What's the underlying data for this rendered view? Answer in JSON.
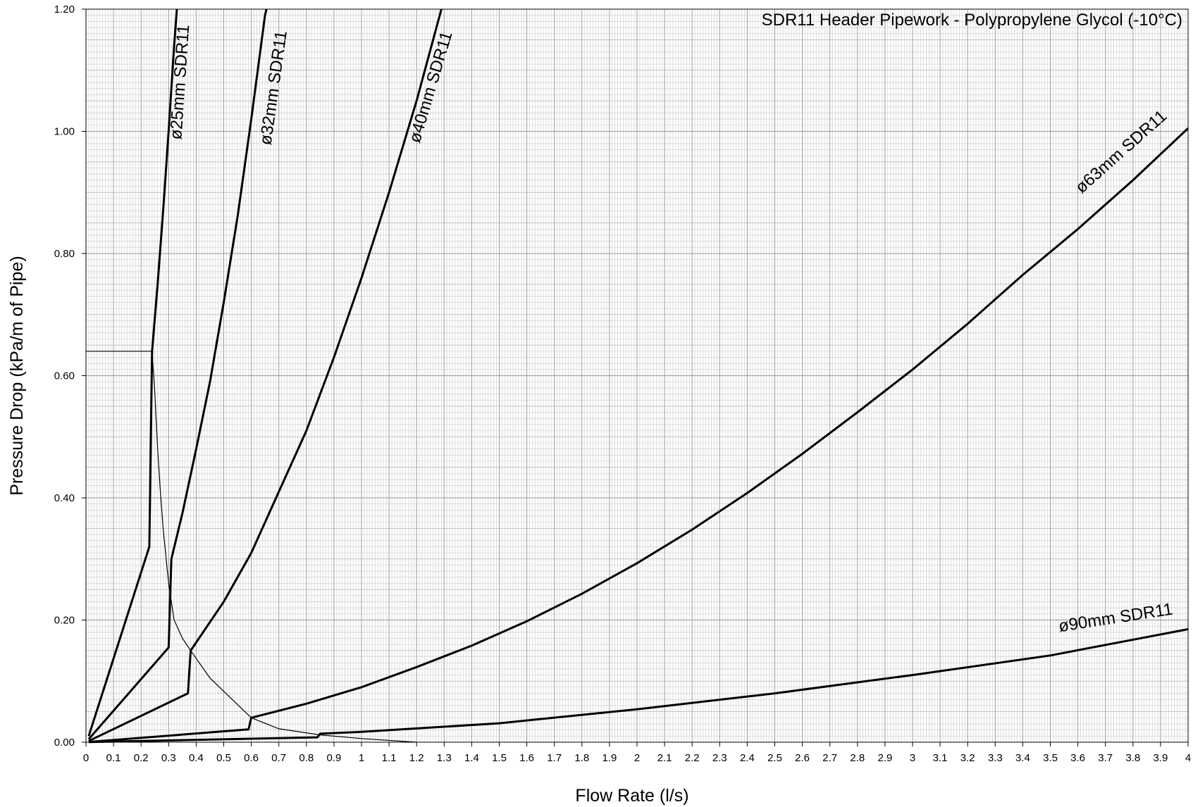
{
  "chart_data": {
    "type": "line",
    "title": "SDR11 Header Pipework - Polypropylene Glycol (-10°C)",
    "xlabel": "Flow Rate (l/s)",
    "ylabel": "Pressure Drop (kPa/m of Pipe)",
    "xlim": [
      0,
      4
    ],
    "ylim": [
      0,
      1.2
    ],
    "grid": true,
    "x_ticks": [
      "0",
      "0.1",
      "0.2",
      "0.3",
      "0.4",
      "0.5",
      "0.6",
      "0.7",
      "0.8",
      "0.9",
      "1",
      "1.1",
      "1.2",
      "1.3",
      "1.4",
      "1.5",
      "1.6",
      "1.7",
      "1.8",
      "1.9",
      "2",
      "2.1",
      "2.2",
      "2.3",
      "2.4",
      "2.5",
      "2.6",
      "2.7",
      "2.8",
      "2.9",
      "3",
      "3.1",
      "3.2",
      "3.3",
      "3.4",
      "3.5",
      "3.6",
      "3.7",
      "3.8",
      "3.9",
      "4"
    ],
    "y_ticks": [
      "0.00",
      "0.20",
      "0.40",
      "0.60",
      "0.80",
      "1.00",
      "1.20"
    ],
    "series": [
      {
        "name": "ø25mm SDR11",
        "label_at": [
          0.36,
          1.08
        ],
        "points": [
          [
            0.01,
            0.01
          ],
          [
            0.23,
            0.32
          ],
          [
            0.24,
            0.64
          ],
          [
            0.26,
            0.75
          ],
          [
            0.28,
            0.87
          ],
          [
            0.3,
            1.0
          ],
          [
            0.32,
            1.14
          ],
          [
            0.33,
            1.2
          ]
        ]
      },
      {
        "name": "ø32mm SDR11",
        "label_at": [
          0.7,
          1.07
        ],
        "points": [
          [
            0.01,
            0.005
          ],
          [
            0.3,
            0.155
          ],
          [
            0.31,
            0.3
          ],
          [
            0.35,
            0.375
          ],
          [
            0.4,
            0.48
          ],
          [
            0.45,
            0.59
          ],
          [
            0.5,
            0.72
          ],
          [
            0.55,
            0.86
          ],
          [
            0.6,
            1.02
          ],
          [
            0.65,
            1.19
          ],
          [
            0.655,
            1.2
          ]
        ]
      },
      {
        "name": "ø40mm SDR11",
        "label_at": [
          1.27,
          1.07
        ],
        "points": [
          [
            0.01,
            0.002
          ],
          [
            0.37,
            0.08
          ],
          [
            0.38,
            0.15
          ],
          [
            0.5,
            0.23
          ],
          [
            0.6,
            0.31
          ],
          [
            0.7,
            0.41
          ],
          [
            0.8,
            0.51
          ],
          [
            0.9,
            0.63
          ],
          [
            1.0,
            0.76
          ],
          [
            1.1,
            0.9
          ],
          [
            1.2,
            1.05
          ],
          [
            1.29,
            1.2
          ]
        ]
      },
      {
        "name": "ø63mm SDR11",
        "label_at": [
          3.77,
          0.96
        ],
        "points": [
          [
            0.01,
            0.0005
          ],
          [
            0.59,
            0.021
          ],
          [
            0.6,
            0.04
          ],
          [
            0.8,
            0.063
          ],
          [
            1.0,
            0.09
          ],
          [
            1.2,
            0.123
          ],
          [
            1.4,
            0.158
          ],
          [
            1.6,
            0.198
          ],
          [
            1.8,
            0.243
          ],
          [
            2.0,
            0.293
          ],
          [
            2.2,
            0.348
          ],
          [
            2.4,
            0.408
          ],
          [
            2.6,
            0.472
          ],
          [
            2.8,
            0.54
          ],
          [
            3.0,
            0.61
          ],
          [
            3.2,
            0.685
          ],
          [
            3.4,
            0.765
          ],
          [
            3.6,
            0.84
          ],
          [
            3.8,
            0.92
          ],
          [
            4.0,
            1.005
          ]
        ]
      },
      {
        "name": "ø90mm SDR11",
        "label_at": [
          3.74,
          0.195
        ],
        "points": [
          [
            0.01,
            0.0002
          ],
          [
            0.84,
            0.008
          ],
          [
            0.85,
            0.014
          ],
          [
            1.0,
            0.017
          ],
          [
            1.5,
            0.031
          ],
          [
            2.0,
            0.054
          ],
          [
            2.5,
            0.08
          ],
          [
            3.0,
            0.11
          ],
          [
            3.5,
            0.142
          ],
          [
            4.0,
            0.185
          ]
        ]
      },
      {
        "name": "",
        "points": [
          [
            0.0,
            0.64
          ],
          [
            0.24,
            0.64
          ],
          [
            0.25,
            0.57
          ],
          [
            0.26,
            0.48
          ],
          [
            0.27,
            0.41
          ],
          [
            0.28,
            0.35
          ],
          [
            0.3,
            0.26
          ],
          [
            0.32,
            0.2
          ],
          [
            0.35,
            0.17
          ],
          [
            0.38,
            0.15
          ],
          [
            0.45,
            0.105
          ],
          [
            0.6,
            0.04
          ],
          [
            0.7,
            0.022
          ],
          [
            0.85,
            0.012
          ],
          [
            1.0,
            0.006
          ],
          [
            1.2,
            0.0
          ]
        ]
      }
    ]
  }
}
